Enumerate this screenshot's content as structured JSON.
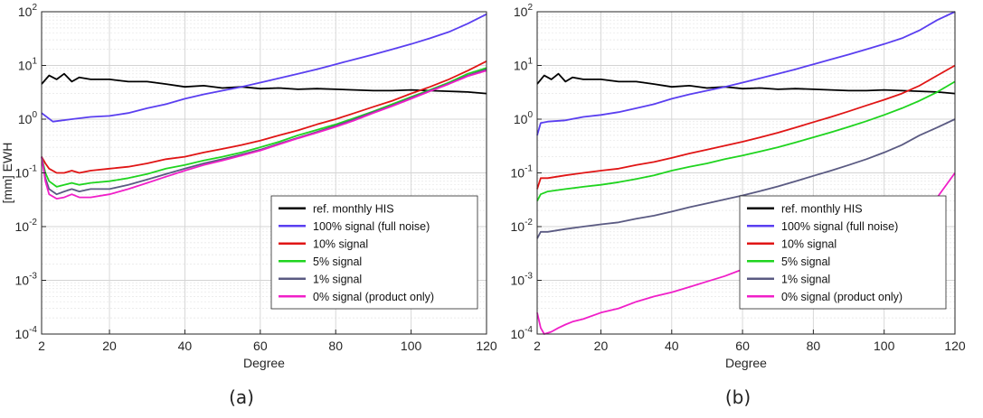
{
  "figure": {
    "panel_labels": [
      "(a)",
      "(b)"
    ],
    "colors": {
      "ref. monthly HIS": "#000000",
      "100% signal (full noise)": "#5a3ff0",
      "10% signal": "#e01515",
      "5% signal": "#1fd41f",
      "1% signal": "#5a5a82",
      "0% signal (product only)": "#f01fc8"
    }
  },
  "chart_data": [
    {
      "type": "line",
      "panel": "(a)",
      "xlabel": "Degree",
      "ylabel": "[mm] EWH",
      "xlim": [
        2,
        120
      ],
      "ylim": [
        0.0001,
        100
      ],
      "yscale": "log",
      "x_ticks": [
        2,
        20,
        40,
        60,
        80,
        100,
        120
      ],
      "y_ticks": [
        {
          "value": 0.0001,
          "exp": "-4"
        },
        {
          "value": 0.001,
          "exp": "-3"
        },
        {
          "value": 0.01,
          "exp": "-2"
        },
        {
          "value": 0.1,
          "exp": "-1"
        },
        {
          "value": 1,
          "exp": "0"
        },
        {
          "value": 10,
          "exp": "1"
        },
        {
          "value": 100,
          "exp": "2"
        }
      ],
      "grid": true,
      "legend_position": "bottom-right",
      "series": [
        {
          "name": "ref. monthly HIS",
          "x": [
            2,
            4,
            6,
            8,
            10,
            12,
            15,
            20,
            25,
            30,
            35,
            40,
            45,
            50,
            55,
            60,
            65,
            70,
            75,
            80,
            85,
            90,
            95,
            100,
            105,
            110,
            115,
            120
          ],
          "values": [
            4.5,
            6.5,
            5.5,
            7.0,
            5.0,
            6.0,
            5.5,
            5.5,
            5.0,
            5.0,
            4.5,
            4.0,
            4.2,
            3.8,
            4.0,
            3.7,
            3.8,
            3.6,
            3.7,
            3.6,
            3.5,
            3.4,
            3.4,
            3.5,
            3.4,
            3.3,
            3.2,
            3.0
          ]
        },
        {
          "name": "100% signal (full noise)",
          "x": [
            2,
            5,
            10,
            15,
            20,
            25,
            30,
            35,
            40,
            45,
            50,
            55,
            60,
            65,
            70,
            75,
            80,
            85,
            90,
            95,
            100,
            105,
            110,
            115,
            120
          ],
          "values": [
            1.3,
            0.9,
            1.0,
            1.1,
            1.15,
            1.3,
            1.6,
            1.9,
            2.4,
            2.9,
            3.4,
            4.0,
            4.8,
            5.8,
            7.0,
            8.5,
            10.5,
            13.0,
            16.0,
            20.0,
            25.0,
            32.0,
            42.0,
            60.0,
            90.0
          ]
        },
        {
          "name": "10% signal",
          "x": [
            2,
            3,
            4,
            6,
            8,
            10,
            12,
            15,
            20,
            25,
            30,
            35,
            40,
            45,
            50,
            55,
            60,
            65,
            70,
            75,
            80,
            85,
            90,
            95,
            100,
            105,
            110,
            115,
            120
          ],
          "values": [
            0.2,
            0.15,
            0.12,
            0.1,
            0.1,
            0.11,
            0.1,
            0.11,
            0.12,
            0.13,
            0.15,
            0.18,
            0.2,
            0.24,
            0.28,
            0.33,
            0.4,
            0.5,
            0.62,
            0.8,
            1.0,
            1.3,
            1.7,
            2.2,
            3.0,
            4.0,
            5.5,
            8.0,
            12.0
          ]
        },
        {
          "name": "5% signal",
          "x": [
            2,
            3,
            4,
            6,
            8,
            10,
            12,
            15,
            20,
            25,
            30,
            35,
            40,
            45,
            50,
            55,
            60,
            65,
            70,
            75,
            80,
            85,
            90,
            95,
            100,
            105,
            110,
            115,
            120
          ],
          "values": [
            0.2,
            0.1,
            0.07,
            0.055,
            0.06,
            0.065,
            0.06,
            0.065,
            0.07,
            0.08,
            0.095,
            0.12,
            0.14,
            0.17,
            0.2,
            0.24,
            0.3,
            0.38,
            0.5,
            0.63,
            0.8,
            1.05,
            1.4,
            1.9,
            2.6,
            3.5,
            4.8,
            7.0,
            9.0
          ]
        },
        {
          "name": "1% signal",
          "x": [
            2,
            3,
            4,
            6,
            8,
            10,
            12,
            15,
            20,
            25,
            30,
            35,
            40,
            45,
            50,
            55,
            60,
            65,
            70,
            75,
            80,
            85,
            90,
            95,
            100,
            105,
            110,
            115,
            120
          ],
          "values": [
            0.2,
            0.08,
            0.05,
            0.04,
            0.045,
            0.05,
            0.045,
            0.05,
            0.05,
            0.06,
            0.075,
            0.095,
            0.12,
            0.15,
            0.18,
            0.22,
            0.27,
            0.35,
            0.45,
            0.58,
            0.75,
            1.0,
            1.35,
            1.8,
            2.5,
            3.4,
            4.6,
            6.5,
            8.5
          ]
        },
        {
          "name": "0% signal (product only)",
          "x": [
            2,
            3,
            4,
            6,
            8,
            10,
            12,
            15,
            20,
            25,
            30,
            35,
            40,
            45,
            50,
            55,
            60,
            65,
            70,
            75,
            80,
            85,
            90,
            95,
            100,
            105,
            110,
            115,
            120
          ],
          "values": [
            0.2,
            0.07,
            0.04,
            0.033,
            0.035,
            0.04,
            0.035,
            0.035,
            0.04,
            0.05,
            0.065,
            0.085,
            0.11,
            0.14,
            0.17,
            0.21,
            0.26,
            0.34,
            0.44,
            0.56,
            0.72,
            0.95,
            1.3,
            1.75,
            2.4,
            3.3,
            4.5,
            6.3,
            8.0
          ]
        }
      ]
    },
    {
      "type": "line",
      "panel": "(b)",
      "xlabel": "Degree",
      "ylabel": "",
      "xlim": [
        2,
        120
      ],
      "ylim": [
        0.0001,
        100
      ],
      "yscale": "log",
      "x_ticks": [
        2,
        20,
        40,
        60,
        80,
        100,
        120
      ],
      "y_ticks": [
        {
          "value": 0.0001,
          "exp": "-4"
        },
        {
          "value": 0.001,
          "exp": "-3"
        },
        {
          "value": 0.01,
          "exp": "-2"
        },
        {
          "value": 0.1,
          "exp": "-1"
        },
        {
          "value": 1,
          "exp": "0"
        },
        {
          "value": 10,
          "exp": "1"
        },
        {
          "value": 100,
          "exp": "2"
        }
      ],
      "grid": true,
      "legend_position": "bottom-right",
      "series": [
        {
          "name": "ref. monthly HIS",
          "x": [
            2,
            4,
            6,
            8,
            10,
            12,
            15,
            20,
            25,
            30,
            35,
            40,
            45,
            50,
            55,
            60,
            65,
            70,
            75,
            80,
            85,
            90,
            95,
            100,
            105,
            110,
            115,
            120
          ],
          "values": [
            4.5,
            6.5,
            5.5,
            7.0,
            5.0,
            6.0,
            5.5,
            5.5,
            5.0,
            5.0,
            4.5,
            4.0,
            4.2,
            3.8,
            4.0,
            3.7,
            3.8,
            3.6,
            3.7,
            3.6,
            3.5,
            3.4,
            3.4,
            3.5,
            3.4,
            3.3,
            3.2,
            3.0
          ]
        },
        {
          "name": "100% signal (full noise)",
          "x": [
            2,
            3,
            5,
            10,
            15,
            20,
            25,
            30,
            35,
            40,
            45,
            50,
            55,
            60,
            65,
            70,
            75,
            80,
            85,
            90,
            95,
            100,
            105,
            110,
            115,
            120
          ],
          "values": [
            0.5,
            0.85,
            0.9,
            0.95,
            1.1,
            1.2,
            1.35,
            1.6,
            1.9,
            2.4,
            2.9,
            3.4,
            4.0,
            4.8,
            5.8,
            7.0,
            8.5,
            10.5,
            13.0,
            16.0,
            20.0,
            25.0,
            32.0,
            45.0,
            70.0,
            100.0
          ]
        },
        {
          "name": "10% signal",
          "x": [
            2,
            3,
            5,
            10,
            15,
            20,
            25,
            30,
            35,
            40,
            45,
            50,
            55,
            60,
            65,
            70,
            75,
            80,
            85,
            90,
            95,
            100,
            105,
            110,
            115,
            120
          ],
          "values": [
            0.05,
            0.08,
            0.08,
            0.09,
            0.1,
            0.11,
            0.12,
            0.14,
            0.16,
            0.19,
            0.23,
            0.27,
            0.32,
            0.38,
            0.46,
            0.56,
            0.7,
            0.88,
            1.1,
            1.4,
            1.8,
            2.3,
            3.0,
            4.2,
            6.5,
            10.0
          ]
        },
        {
          "name": "5% signal",
          "x": [
            2,
            3,
            5,
            10,
            15,
            20,
            25,
            30,
            35,
            40,
            45,
            50,
            55,
            60,
            65,
            70,
            75,
            80,
            85,
            90,
            95,
            100,
            105,
            110,
            115,
            120
          ],
          "values": [
            0.03,
            0.04,
            0.045,
            0.05,
            0.055,
            0.06,
            0.067,
            0.077,
            0.09,
            0.11,
            0.13,
            0.15,
            0.18,
            0.21,
            0.25,
            0.3,
            0.37,
            0.46,
            0.57,
            0.72,
            0.92,
            1.2,
            1.6,
            2.2,
            3.2,
            5.0
          ]
        },
        {
          "name": "1% signal",
          "x": [
            2,
            3,
            5,
            10,
            15,
            20,
            25,
            30,
            35,
            40,
            45,
            50,
            55,
            60,
            65,
            70,
            75,
            80,
            85,
            90,
            95,
            100,
            105,
            110,
            115,
            120
          ],
          "values": [
            0.006,
            0.008,
            0.008,
            0.009,
            0.01,
            0.011,
            0.012,
            0.014,
            0.016,
            0.019,
            0.023,
            0.027,
            0.032,
            0.038,
            0.046,
            0.056,
            0.07,
            0.088,
            0.11,
            0.14,
            0.18,
            0.24,
            0.33,
            0.5,
            0.7,
            1.0
          ]
        },
        {
          "name": "0% signal (product only)",
          "x": [
            2,
            3,
            4,
            6,
            8,
            10,
            12,
            15,
            20,
            25,
            30,
            35,
            40,
            45,
            50,
            55,
            60,
            65,
            70,
            75,
            80,
            85,
            90,
            95,
            100,
            105,
            110,
            115,
            120
          ],
          "values": [
            0.00025,
            0.00013,
            0.0001,
            0.00011,
            0.00013,
            0.00015,
            0.00017,
            0.00019,
            0.00025,
            0.0003,
            0.0004,
            0.0005,
            0.0006,
            0.00075,
            0.00095,
            0.0012,
            0.0016,
            0.002,
            0.0026,
            0.0033,
            0.0043,
            0.0056,
            0.0073,
            0.0095,
            0.013,
            0.018,
            0.025,
            0.035,
            0.1
          ]
        }
      ]
    }
  ]
}
